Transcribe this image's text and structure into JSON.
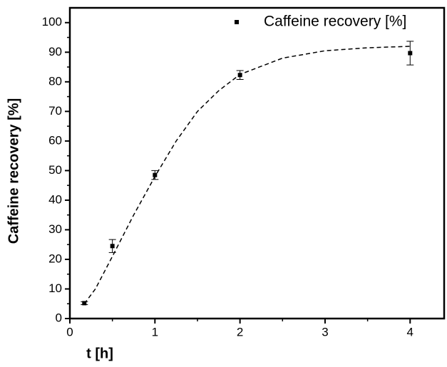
{
  "chart_data": {
    "type": "scatter",
    "x_label": "t [h]",
    "y_label": "Caffeine recovery [%]",
    "series": [
      {
        "name": "Caffeine recovery [%]",
        "color": "#000000",
        "x": [
          0.17,
          0.5,
          1,
          2,
          4
        ],
        "values": [
          5.2,
          24.5,
          48.5,
          82.3,
          89.7
        ],
        "errors": [
          0.5,
          2.2,
          1.5,
          1.5,
          4
        ]
      }
    ],
    "fit": {
      "style": "dashed",
      "color": "#000000",
      "x": [
        0.17,
        0.3,
        0.5,
        0.75,
        1,
        1.25,
        1.5,
        1.75,
        2,
        2.5,
        3,
        3.5,
        4
      ],
      "values": [
        5,
        10,
        21,
        35,
        48,
        60,
        70,
        77,
        82.5,
        88,
        90.5,
        91.5,
        92
      ]
    },
    "xlim": [
      0,
      4.4
    ],
    "xticks": [
      0,
      1,
      2,
      3,
      4
    ],
    "ylim": [
      0,
      105
    ],
    "yticks": [
      0,
      10,
      20,
      30,
      40,
      50,
      60,
      70,
      80,
      90,
      100
    ],
    "legend": "upper right",
    "grid": false
  }
}
